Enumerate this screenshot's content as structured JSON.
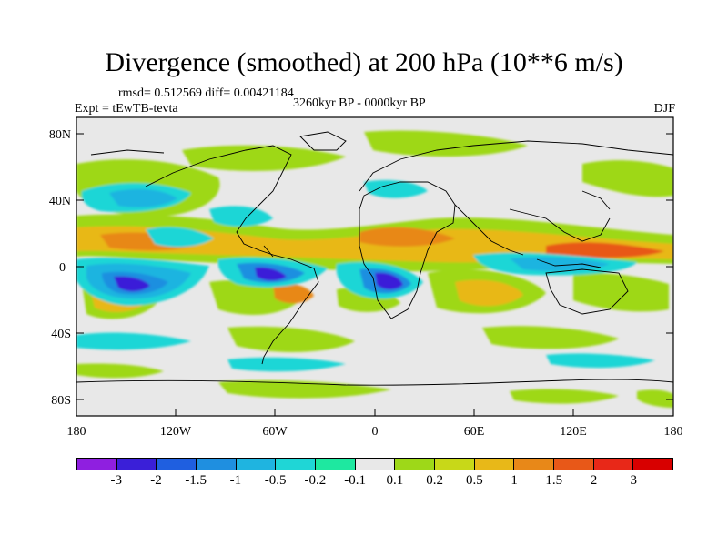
{
  "title": "Divergence (smoothed) at 200 hPa (10**6 m/s)",
  "stats": "rmsd= 0.512569 diff= 0.00421184",
  "expt": "Expt = tEwTB-tevta",
  "period": "3260kyr BP - 0000kyr BP",
  "season": "DJF",
  "axes": {
    "y_ticks": [
      "80N",
      "40N",
      "0",
      "40S",
      "80S"
    ],
    "x_ticks": [
      "180",
      "120W",
      "60W",
      "0",
      "60E",
      "120E",
      "180"
    ]
  },
  "colorbar": {
    "labels": [
      "-3",
      "-2",
      "-1.5",
      "-1",
      "-0.5",
      "-0.2",
      "-0.1",
      "0.1",
      "0.2",
      "0.5",
      "1",
      "1.5",
      "2",
      "3"
    ],
    "colors": [
      "#8f1fe0",
      "#3a1fd8",
      "#1f5fe0",
      "#1f8fe0",
      "#1fb4e0",
      "#1fd6d6",
      "#1ee8a0",
      "#e8e8e8",
      "#9ed818",
      "#c8d818",
      "#e8b818",
      "#e88818",
      "#e85818",
      "#e82818",
      "#d80000"
    ]
  }
}
